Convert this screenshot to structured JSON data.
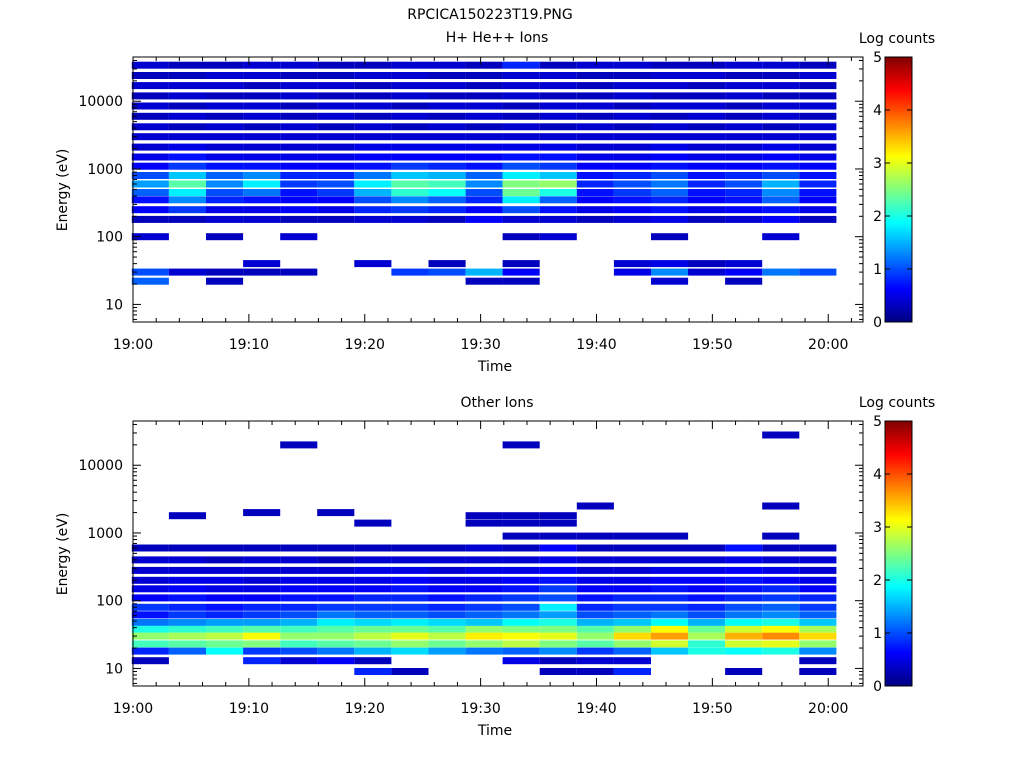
{
  "page_title": "RPCICA150223T19.PNG",
  "colorbar_stops": [
    "#000080",
    "#0000ff",
    "#0080ff",
    "#00ffff",
    "#80ff80",
    "#ffff00",
    "#ff8000",
    "#ff0000",
    "#800000"
  ],
  "chart_data": [
    {
      "type": "heatmap",
      "title": "H+ He++ Ions",
      "xlabel": "Time",
      "ylabel": "Energy (eV)",
      "colorbar_label": "Log counts",
      "colorbar_ticks": [
        "0",
        "1",
        "2",
        "3",
        "4",
        "5"
      ],
      "colorbar_range": [
        0,
        5
      ],
      "x_ticks": [
        "19:00",
        "19:10",
        "19:20",
        "19:30",
        "19:40",
        "19:50",
        "20:00"
      ],
      "x_range_minutes": [
        0,
        63
      ],
      "y_scale": "log",
      "y_ticks": [
        "10",
        "100",
        "1000",
        "10000"
      ],
      "y_range": [
        5.5,
        45000
      ],
      "grid": false,
      "time_bins": [
        "19:01.5",
        "19:04.7",
        "19:07.9",
        "19:11.1",
        "19:14.3",
        "19:17.5",
        "19:20.7",
        "19:23.9",
        "19:27.1",
        "19:30.3",
        "19:33.5",
        "19:36.7",
        "19:39.9",
        "19:43.1",
        "19:46.3",
        "19:49.5",
        "19:52.7",
        "19:55.9",
        "19:59.1"
      ],
      "rows": [
        {
          "e": 22,
          "v": [
            1.1,
            0,
            0.3,
            0,
            0,
            0,
            0,
            0,
            0,
            0.3,
            0.3,
            0,
            0,
            0,
            0.4,
            0,
            0.3,
            0,
            0
          ]
        },
        {
          "e": 30,
          "v": [
            1.0,
            0.4,
            0.3,
            0.3,
            0.3,
            0,
            0,
            0.9,
            1.0,
            1.5,
            0.6,
            0,
            0,
            0.5,
            1.3,
            0.4,
            0.6,
            1.2,
            1.0
          ]
        },
        {
          "e": 40,
          "v": [
            0,
            0,
            0,
            0.4,
            0,
            0,
            0.4,
            0,
            0.3,
            0,
            0.3,
            0,
            0,
            0.4,
            0.5,
            0.3,
            0.4,
            0,
            0
          ]
        },
        {
          "e": 100,
          "v": [
            0.4,
            0,
            0.3,
            0,
            0.4,
            0,
            0,
            0,
            0,
            0,
            0.3,
            0.4,
            0,
            0,
            0.3,
            0,
            0,
            0.4,
            0
          ]
        },
        {
          "e": 180,
          "v": [
            0.3,
            0.3,
            0.4,
            0.4,
            0.3,
            0.3,
            0.4,
            0.4,
            0.3,
            0.6,
            0.4,
            0.4,
            0.3,
            0.4,
            0.5,
            0.3,
            0.4,
            0.6,
            0.3
          ]
        },
        {
          "e": 250,
          "v": [
            0.6,
            0.9,
            0.5,
            0.5,
            0.6,
            0.5,
            0.8,
            0.9,
            0.8,
            0.6,
            1.0,
            0.7,
            0.5,
            0.6,
            0.7,
            0.5,
            0.6,
            0.7,
            0.5
          ]
        },
        {
          "e": 350,
          "v": [
            0.7,
            1.3,
            0.8,
            0.7,
            0.6,
            0.6,
            1.0,
            1.3,
            1.1,
            0.8,
            1.8,
            1.1,
            0.6,
            0.7,
            0.8,
            0.6,
            0.7,
            1.1,
            0.6
          ]
        },
        {
          "e": 450,
          "v": [
            1.1,
            1.8,
            1.0,
            1.2,
            0.7,
            0.9,
            1.5,
            2.1,
            1.9,
            1.0,
            2.4,
            2.0,
            0.7,
            0.9,
            1.1,
            0.7,
            0.8,
            1.3,
            0.7
          ]
        },
        {
          "e": 600,
          "v": [
            1.4,
            2.3,
            1.3,
            1.8,
            0.9,
            1.0,
            1.8,
            2.3,
            2.2,
            1.3,
            2.5,
            2.6,
            0.8,
            1.0,
            1.2,
            0.8,
            1.0,
            1.5,
            0.8
          ]
        },
        {
          "e": 800,
          "v": [
            1.0,
            1.6,
            1.1,
            1.3,
            0.8,
            0.8,
            1.2,
            1.6,
            1.5,
            1.1,
            1.8,
            1.6,
            0.7,
            0.8,
            1.0,
            0.7,
            0.8,
            1.0,
            0.7
          ]
        },
        {
          "e": 1100,
          "v": [
            0.6,
            0.9,
            0.7,
            0.7,
            0.6,
            0.6,
            0.7,
            0.9,
            0.8,
            0.7,
            1.0,
            0.9,
            0.6,
            0.6,
            0.7,
            0.6,
            0.6,
            0.7,
            0.6
          ]
        },
        {
          "e": 1500,
          "v": [
            0.5,
            0.7,
            0.5,
            0.5,
            0.5,
            0.5,
            0.6,
            0.6,
            0.6,
            0.6,
            0.7,
            0.7,
            0.5,
            0.5,
            0.6,
            0.5,
            0.5,
            0.6,
            0.5
          ]
        },
        {
          "e": 2100,
          "v": [
            0.4,
            0.5,
            0.4,
            0.4,
            0.4,
            0.4,
            0.5,
            0.5,
            0.5,
            0.5,
            0.5,
            0.5,
            0.4,
            0.4,
            0.5,
            0.4,
            0.4,
            0.5,
            0.4
          ]
        },
        {
          "e": 3000,
          "v": [
            0.4,
            0.4,
            0.4,
            0.4,
            0.4,
            0.4,
            0.4,
            0.4,
            0.4,
            0.4,
            0.4,
            0.4,
            0.4,
            0.4,
            0.4,
            0.4,
            0.4,
            0.4,
            0.4
          ]
        },
        {
          "e": 4200,
          "v": [
            0.4,
            0.3,
            0.4,
            0.3,
            0.4,
            0.3,
            0.4,
            0.3,
            0.4,
            0.3,
            0.4,
            0.3,
            0.4,
            0.3,
            0.4,
            0.3,
            0.4,
            0.3,
            0.4
          ]
        },
        {
          "e": 6000,
          "v": [
            0.3,
            0.4,
            0.3,
            0.4,
            0.3,
            0.4,
            0.3,
            0.4,
            0.3,
            0.4,
            0.3,
            0.4,
            0.3,
            0.4,
            0.3,
            0.4,
            0.3,
            0.4,
            0.3
          ]
        },
        {
          "e": 8500,
          "v": [
            0.4,
            0.3,
            0.4,
            0.4,
            0.3,
            0.4,
            0.4,
            0.3,
            0.4,
            0.4,
            0.3,
            0.4,
            0.4,
            0.3,
            0.4,
            0.4,
            0.3,
            0.4,
            0.4
          ]
        },
        {
          "e": 12000,
          "v": [
            0.3,
            0.4,
            0.3,
            0.3,
            0.4,
            0.3,
            0.3,
            0.4,
            0.3,
            0.3,
            0.4,
            0.3,
            0.3,
            0.4,
            0.3,
            0.3,
            0.4,
            0.3,
            0.3
          ]
        },
        {
          "e": 17000,
          "v": [
            0.4,
            0.4,
            0.4,
            0.3,
            0.4,
            0.4,
            0.3,
            0.4,
            0.4,
            0.3,
            0.4,
            0.4,
            0.3,
            0.4,
            0.4,
            0.3,
            0.4,
            0.4,
            0.3
          ]
        },
        {
          "e": 24000,
          "v": [
            0.3,
            0.3,
            0.4,
            0.4,
            0.3,
            0.3,
            0.4,
            0.4,
            0.3,
            0.3,
            0.4,
            0.4,
            0.3,
            0.3,
            0.4,
            0.4,
            0.3,
            0.3,
            0.4
          ]
        },
        {
          "e": 34000,
          "v": [
            0.4,
            0.3,
            0.3,
            0.4,
            0.4,
            0.3,
            0.3,
            0.4,
            0.4,
            0.3,
            0.8,
            0.3,
            0.4,
            0.4,
            0.3,
            0.3,
            0.4,
            0.4,
            0.3
          ]
        }
      ]
    },
    {
      "type": "heatmap",
      "title": "Other Ions",
      "xlabel": "Time",
      "ylabel": "Energy (eV)",
      "colorbar_label": "Log counts",
      "colorbar_ticks": [
        "0",
        "1",
        "2",
        "3",
        "4",
        "5"
      ],
      "colorbar_range": [
        0,
        5
      ],
      "x_ticks": [
        "19:00",
        "19:10",
        "19:20",
        "19:30",
        "19:40",
        "19:50",
        "20:00"
      ],
      "x_range_minutes": [
        0,
        63
      ],
      "y_scale": "log",
      "y_ticks": [
        "10",
        "100",
        "1000",
        "10000"
      ],
      "y_range": [
        5.5,
        45000
      ],
      "grid": false,
      "time_bins": [
        "19:01.5",
        "19:04.7",
        "19:07.9",
        "19:11.1",
        "19:14.3",
        "19:17.5",
        "19:20.7",
        "19:23.9",
        "19:27.1",
        "19:30.3",
        "19:33.5",
        "19:36.7",
        "19:39.9",
        "19:43.1",
        "19:46.3",
        "19:49.5",
        "19:52.7",
        "19:55.9",
        "19:59.1"
      ],
      "rows": [
        {
          "e": 9,
          "v": [
            0,
            0,
            0,
            0,
            0,
            0,
            0.8,
            0.3,
            0,
            0,
            0,
            0.3,
            0.3,
            0.8,
            0,
            0,
            0.3,
            0,
            0.3
          ]
        },
        {
          "e": 13,
          "v": [
            0.3,
            0,
            0,
            0.8,
            0.4,
            0.6,
            0.3,
            0,
            0,
            0,
            0.5,
            0.3,
            0.4,
            0.4,
            0,
            0,
            0,
            0,
            0.3
          ]
        },
        {
          "e": 18,
          "v": [
            0.8,
            1.1,
            1.9,
            0.9,
            1.0,
            1.2,
            1.5,
            1.7,
            1.4,
            1.2,
            1.1,
            1.3,
            0.9,
            1.1,
            1.6,
            2.0,
            1.9,
            2.0,
            1.3
          ]
        },
        {
          "e": 23,
          "v": [
            2.2,
            2.3,
            2.4,
            2.5,
            2.2,
            2.3,
            2.4,
            2.6,
            2.4,
            2.6,
            2.8,
            2.5,
            2.3,
            2.6,
            2.9,
            2.1,
            2.9,
            3.0,
            2.6
          ]
        },
        {
          "e": 30,
          "v": [
            2.6,
            2.7,
            2.8,
            3.1,
            2.6,
            2.6,
            2.8,
            3.0,
            2.8,
            3.2,
            3.1,
            3.0,
            2.6,
            3.3,
            3.6,
            2.7,
            3.5,
            3.7,
            3.3
          ]
        },
        {
          "e": 38,
          "v": [
            2.0,
            2.1,
            2.2,
            2.3,
            2.2,
            2.3,
            2.4,
            2.4,
            2.3,
            2.6,
            2.5,
            2.5,
            2.3,
            2.6,
            3.1,
            2.4,
            2.9,
            3.1,
            2.7
          ]
        },
        {
          "e": 48,
          "v": [
            1.2,
            1.3,
            1.4,
            1.4,
            1.5,
            1.8,
            1.7,
            1.8,
            1.7,
            1.6,
            1.9,
            2.0,
            1.5,
            1.6,
            1.9,
            1.5,
            1.9,
            2.0,
            1.6
          ]
        },
        {
          "e": 62,
          "v": [
            0.7,
            0.9,
            0.8,
            0.9,
            1.0,
            1.2,
            1.1,
            1.1,
            1.0,
            1.1,
            1.2,
            1.4,
            1.0,
            1.1,
            1.2,
            1.0,
            1.2,
            1.3,
            1.1
          ]
        },
        {
          "e": 80,
          "v": [
            0.9,
            0.8,
            0.7,
            0.8,
            0.8,
            0.9,
            0.9,
            0.9,
            0.8,
            0.9,
            1.0,
            1.8,
            0.8,
            0.9,
            0.9,
            0.8,
            1.0,
            1.1,
            0.9
          ]
        },
        {
          "e": 110,
          "v": [
            0.6,
            0.7,
            0.6,
            0.6,
            0.7,
            0.7,
            0.8,
            0.8,
            0.7,
            0.8,
            0.9,
            1.0,
            0.7,
            0.8,
            0.8,
            0.7,
            0.8,
            0.9,
            0.8
          ]
        },
        {
          "e": 150,
          "v": [
            0.5,
            0.6,
            0.5,
            0.5,
            0.6,
            0.6,
            0.6,
            0.7,
            0.6,
            0.6,
            0.7,
            0.9,
            0.6,
            0.6,
            0.7,
            0.6,
            0.7,
            0.8,
            0.6
          ]
        },
        {
          "e": 200,
          "v": [
            0.4,
            0.5,
            0.5,
            0.4,
            0.5,
            0.5,
            0.5,
            0.6,
            0.5,
            0.5,
            0.6,
            0.7,
            0.5,
            0.5,
            0.6,
            0.6,
            0.7,
            0.6,
            0.5
          ]
        },
        {
          "e": 280,
          "v": [
            0.4,
            0.4,
            0.4,
            0.4,
            0.4,
            0.4,
            0.5,
            0.5,
            0.4,
            0.5,
            0.5,
            0.6,
            0.4,
            0.4,
            0.5,
            0.5,
            0.6,
            0.5,
            0.4
          ]
        },
        {
          "e": 400,
          "v": [
            0.4,
            0.4,
            0.3,
            0.4,
            0.4,
            0.3,
            0.4,
            0.4,
            0.4,
            0.4,
            0.4,
            0.5,
            0.4,
            0.4,
            0.4,
            0.4,
            0.5,
            0.4,
            0.4
          ]
        },
        {
          "e": 600,
          "v": [
            0.3,
            0.3,
            0.3,
            0.3,
            0.3,
            0.3,
            0.3,
            0.3,
            0.3,
            0.4,
            0.3,
            0.6,
            0.3,
            0.3,
            0.3,
            0.3,
            0.7,
            0.3,
            0.3
          ]
        },
        {
          "e": 900,
          "v": [
            0,
            0,
            0,
            0,
            0,
            0,
            0,
            0,
            0,
            0,
            0.3,
            0.3,
            0.3,
            0.3,
            0.3,
            0,
            0,
            0.3,
            0
          ]
        },
        {
          "e": 1400,
          "v": [
            0,
            0,
            0,
            0,
            0,
            0,
            0.3,
            0,
            0,
            0.3,
            0.3,
            0.3,
            0,
            0,
            0,
            0,
            0,
            0,
            0
          ]
        },
        {
          "e": 1800,
          "v": [
            0,
            0.3,
            0,
            0,
            0,
            0,
            0,
            0,
            0,
            0.3,
            0.3,
            0.3,
            0,
            0,
            0,
            0,
            0,
            0,
            0
          ]
        },
        {
          "e": 2000,
          "v": [
            0,
            0,
            0,
            0.3,
            0,
            0.3,
            0,
            0,
            0,
            0,
            0,
            0,
            0,
            0,
            0,
            0,
            0,
            0,
            0
          ]
        },
        {
          "e": 2500,
          "v": [
            0,
            0,
            0,
            0,
            0,
            0,
            0,
            0,
            0,
            0,
            0,
            0,
            0.3,
            0,
            0,
            0,
            0,
            0.3,
            0
          ]
        },
        {
          "e": 20000,
          "v": [
            0,
            0,
            0,
            0,
            0.3,
            0,
            0,
            0,
            0,
            0,
            0.3,
            0,
            0,
            0,
            0,
            0,
            0,
            0,
            0
          ]
        },
        {
          "e": 28000,
          "v": [
            0,
            0,
            0,
            0,
            0,
            0,
            0,
            0,
            0,
            0,
            0,
            0,
            0,
            0,
            0,
            0,
            0,
            0.3,
            0
          ]
        }
      ]
    }
  ]
}
